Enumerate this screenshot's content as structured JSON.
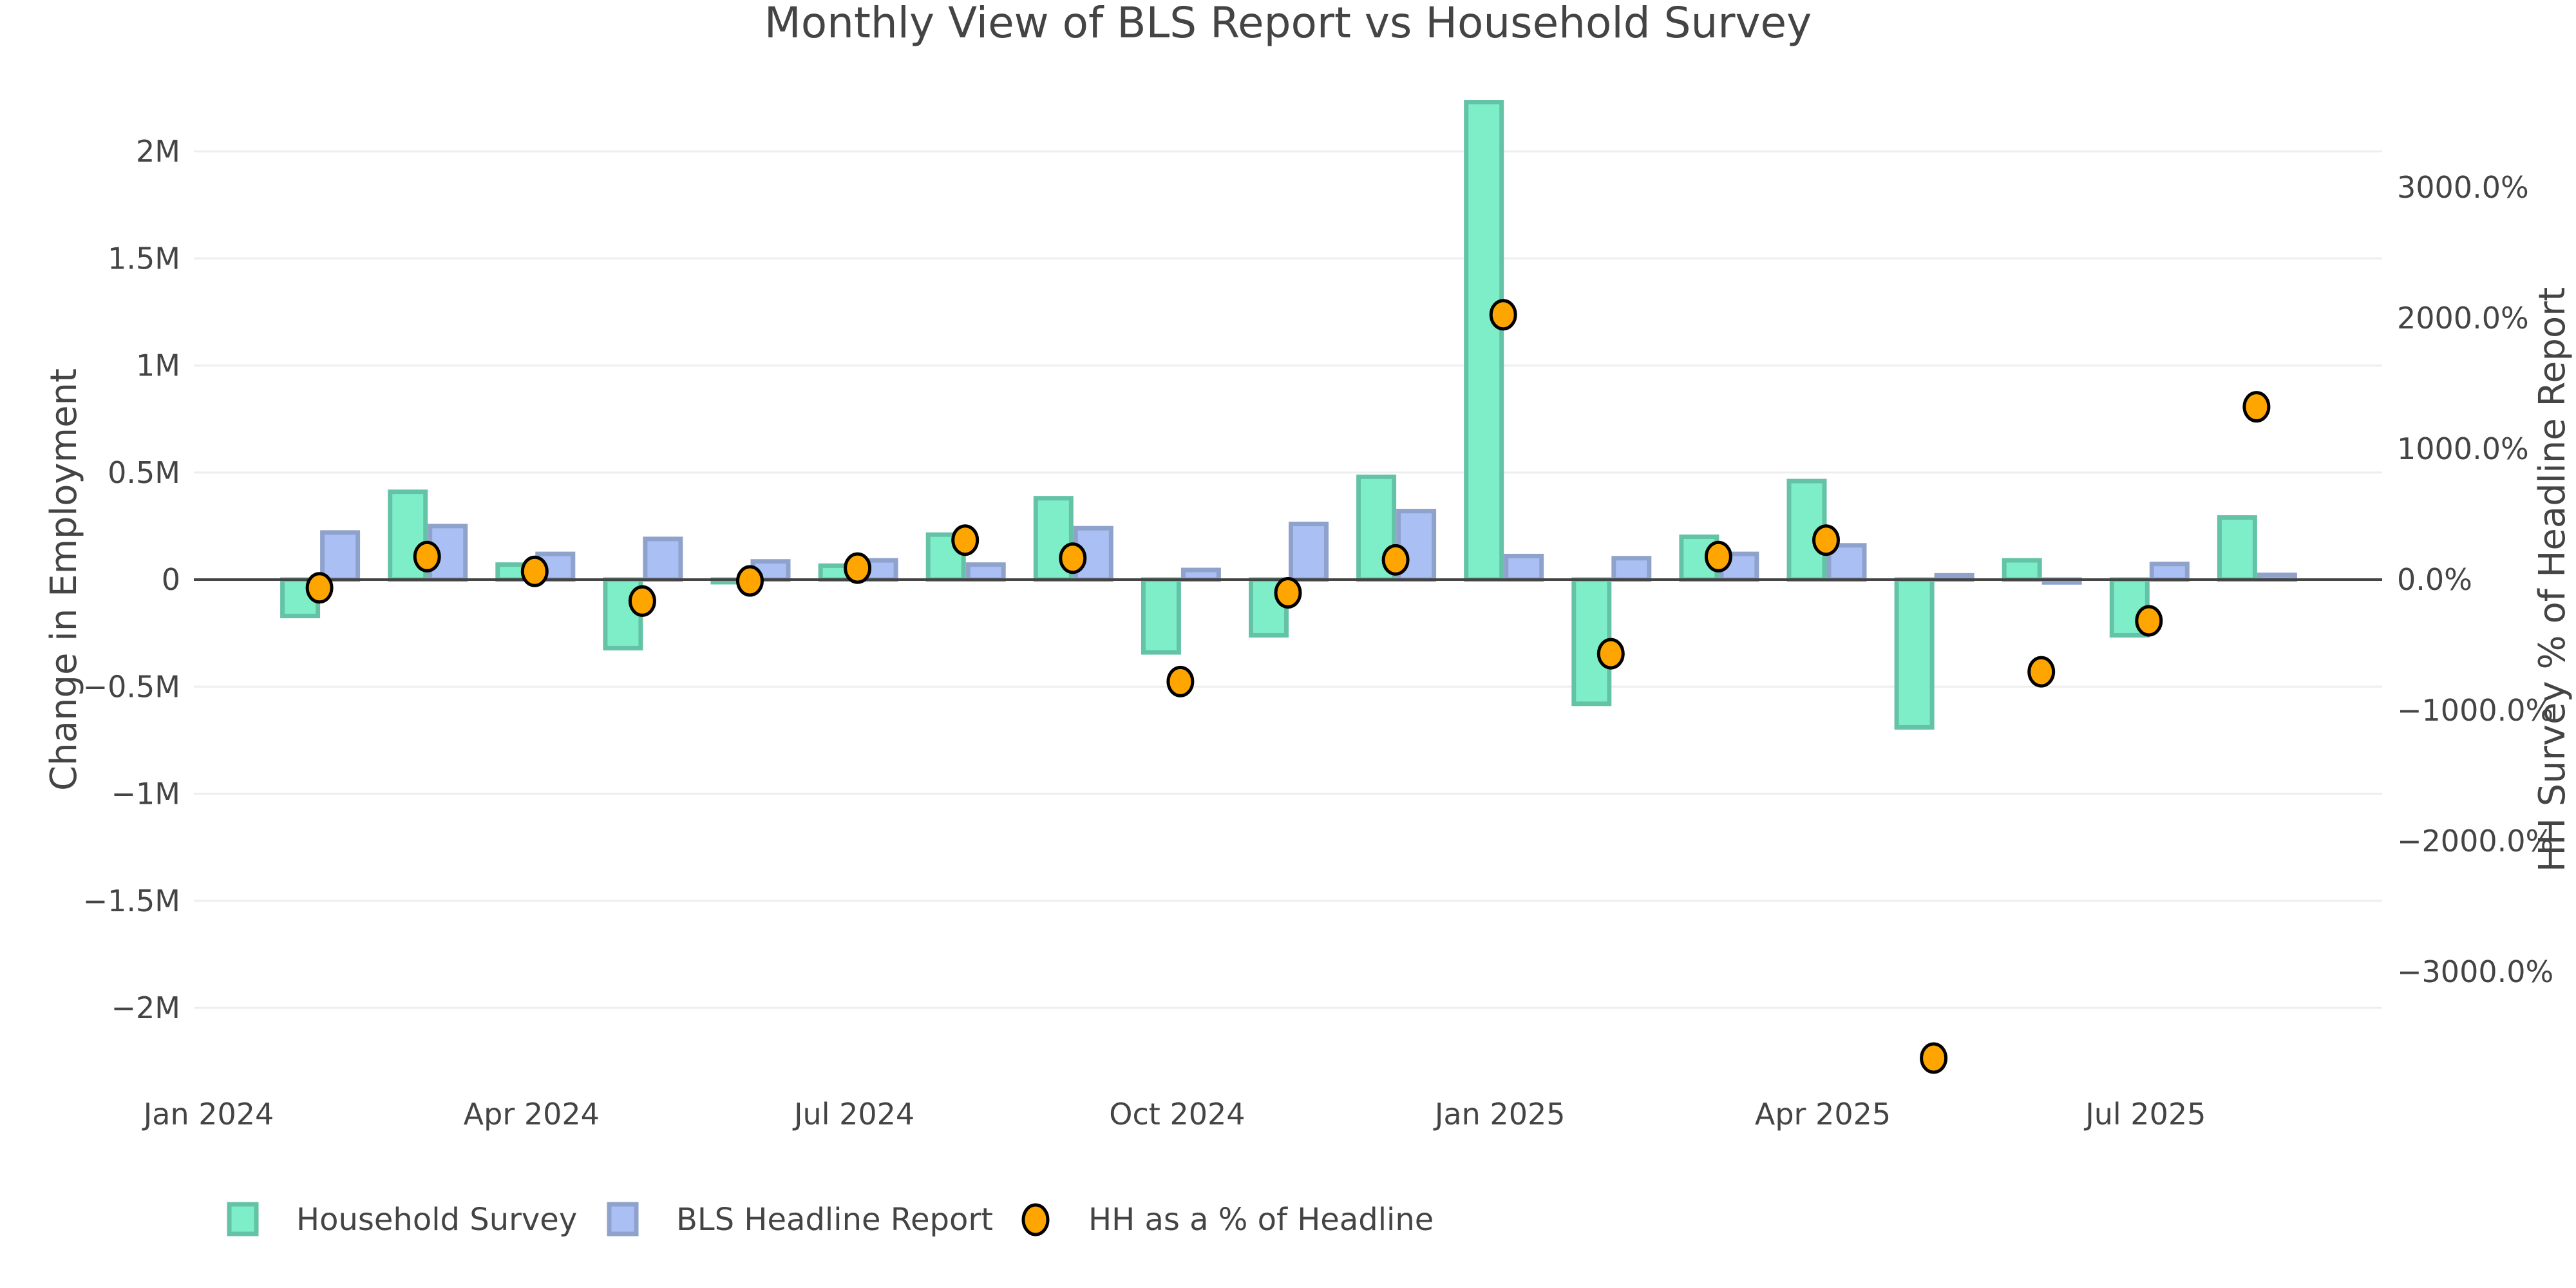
{
  "chart_data": {
    "type": "bar",
    "title": "Monthly View of BLS Report vs Household Survey",
    "xlabel": "",
    "ylabel": "Change in Employment",
    "y2label": "HH Survey % of Headline Report",
    "ylim": [
      -2350000,
      2350000
    ],
    "y2lim": [
      -4430,
      4430
    ],
    "grid": true,
    "legend_position": "bottom-left",
    "x_tick_labels": [
      "Jan 2024",
      "Apr 2024",
      "Jul 2024",
      "Oct 2024",
      "Jan 2025",
      "Apr 2025",
      "Jul 2025"
    ],
    "y_tick_labels": [
      "2M",
      "1.5M",
      "1M",
      "0.5M",
      "0",
      "−0.5M",
      "−1M",
      "−1.5M",
      "−2M"
    ],
    "y_ticks": [
      2000000,
      1500000,
      1000000,
      500000,
      0,
      -500000,
      -1000000,
      -1500000,
      -2000000
    ],
    "y2_tick_labels": [
      "3000.0%",
      "2000.0%",
      "1000.0%",
      "0.0%",
      "−1000.0%",
      "−2000.0%",
      "−3000.0%"
    ],
    "y2_ticks": [
      3000,
      2000,
      1000,
      0,
      -1000,
      -2000,
      -3000
    ],
    "categories": [
      "2024-02",
      "2024-03",
      "2024-04",
      "2024-05",
      "2024-06",
      "2024-07",
      "2024-08",
      "2024-09",
      "2024-10",
      "2024-11",
      "2024-12",
      "2025-01",
      "2025-02",
      "2025-03",
      "2025-04",
      "2025-05",
      "2025-06",
      "2025-07",
      "2025-08"
    ],
    "series": [
      {
        "name": "Household Survey",
        "type": "bar",
        "axis": "left",
        "color": "#7eeec9",
        "border": "#64c3a6",
        "values": [
          -170000,
          410000,
          70000,
          -320000,
          -10000,
          65000,
          210000,
          380000,
          -340000,
          -260000,
          480000,
          2230000,
          -580000,
          200000,
          460000,
          -690000,
          90000,
          -260000,
          290000
        ]
      },
      {
        "name": "BLS Headline Report",
        "type": "bar",
        "axis": "left",
        "color": "#aac0f4",
        "border": "#8fa2cc",
        "values": [
          220000,
          250000,
          120000,
          190000,
          85000,
          90000,
          70000,
          240000,
          45000,
          260000,
          320000,
          110000,
          100000,
          120000,
          160000,
          20000,
          -13000,
          73000,
          22000
        ]
      },
      {
        "name": "HH as a % of Headline",
        "type": "scatter",
        "axis": "right",
        "color": "#ffa500",
        "border": "#000000",
        "values": [
          -63,
          176,
          63,
          -164,
          -10,
          88,
          302,
          164,
          -780,
          -101,
          151,
          2026,
          -567,
          176,
          302,
          -3660,
          -705,
          -315,
          1322
        ]
      }
    ]
  }
}
